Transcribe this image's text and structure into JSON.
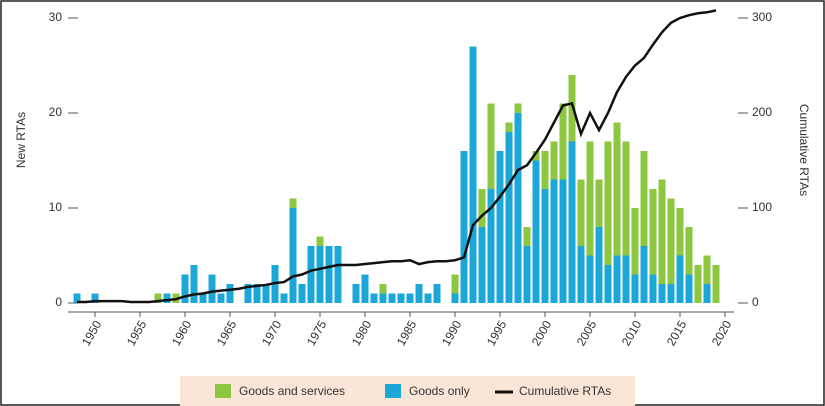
{
  "chart_data": {
    "type": "bar",
    "y_label": "New RTAs",
    "y2_label": "Cumulative RTAs",
    "x": [
      1948,
      1949,
      1950,
      1951,
      1952,
      1953,
      1954,
      1955,
      1956,
      1957,
      1958,
      1959,
      1960,
      1961,
      1962,
      1963,
      1964,
      1965,
      1966,
      1967,
      1968,
      1969,
      1970,
      1971,
      1972,
      1973,
      1974,
      1975,
      1976,
      1977,
      1978,
      1979,
      1980,
      1981,
      1982,
      1983,
      1984,
      1985,
      1986,
      1987,
      1988,
      1989,
      1990,
      1991,
      1992,
      1993,
      1994,
      1995,
      1996,
      1997,
      1998,
      1999,
      2000,
      2001,
      2002,
      2003,
      2004,
      2005,
      2006,
      2007,
      2008,
      2009,
      2010,
      2011,
      2012,
      2013,
      2014,
      2015,
      2016,
      2017,
      2018,
      2019
    ],
    "series": [
      {
        "name": "Goods and services",
        "color": "#8dc63f",
        "type": "bar",
        "values": [
          0,
          0,
          0,
          0,
          0,
          0,
          0,
          0,
          0,
          1,
          0,
          1,
          0,
          0,
          0,
          0,
          0,
          0,
          0,
          0,
          0,
          0,
          0,
          0,
          1,
          0,
          0,
          1,
          0,
          0,
          0,
          0,
          0,
          0,
          1,
          0,
          0,
          0,
          0,
          0,
          0,
          0,
          2,
          0,
          0,
          4,
          9,
          0,
          1,
          1,
          2,
          1,
          4,
          4,
          8,
          7,
          7,
          12,
          5,
          13,
          14,
          12,
          7,
          10,
          9,
          11,
          9,
          5,
          5,
          4,
          3,
          4
        ]
      },
      {
        "name": "Goods only",
        "color": "#1ba7d8",
        "type": "bar",
        "values": [
          1,
          0,
          1,
          0,
          0,
          0,
          0,
          0,
          0,
          0,
          1,
          0,
          3,
          4,
          1,
          3,
          1,
          2,
          0,
          2,
          2,
          2,
          4,
          1,
          10,
          2,
          6,
          6,
          6,
          6,
          0,
          2,
          3,
          1,
          1,
          1,
          1,
          1,
          2,
          1,
          2,
          0,
          1,
          16,
          27,
          8,
          12,
          16,
          18,
          20,
          6,
          15,
          12,
          13,
          13,
          17,
          6,
          5,
          8,
          4,
          5,
          5,
          3,
          6,
          3,
          2,
          2,
          5,
          3,
          0,
          2,
          0
        ]
      },
      {
        "name": "Cumulative RTAs",
        "color": "#111111",
        "type": "line",
        "axis": "y2",
        "values": [
          1,
          1,
          2,
          2,
          2,
          2,
          1,
          1,
          1,
          2,
          3,
          4,
          7,
          9,
          10,
          12,
          13,
          14,
          15,
          17,
          18,
          19,
          21,
          22,
          28,
          30,
          34,
          36,
          38,
          40,
          40,
          40,
          41,
          42,
          43,
          44,
          44,
          45,
          41,
          43,
          44,
          44,
          45,
          48,
          82,
          92,
          100,
          112,
          125,
          140,
          145,
          158,
          172,
          190,
          208,
          210,
          178,
          200,
          182,
          200,
          222,
          238,
          250,
          258,
          272,
          285,
          295,
          300,
          303,
          305,
          306,
          308
        ]
      }
    ],
    "xlim": [
      1947,
      2021
    ],
    "xticks": [
      1950,
      1955,
      1960,
      1965,
      1970,
      1975,
      1980,
      1985,
      1990,
      1995,
      2000,
      2005,
      2010,
      2015,
      2020
    ],
    "ylim": [
      0,
      30
    ],
    "yticks": [
      0,
      10,
      20,
      30
    ],
    "y2lim": [
      0,
      300
    ],
    "y2ticks": [
      0,
      100,
      200,
      300
    ]
  }
}
